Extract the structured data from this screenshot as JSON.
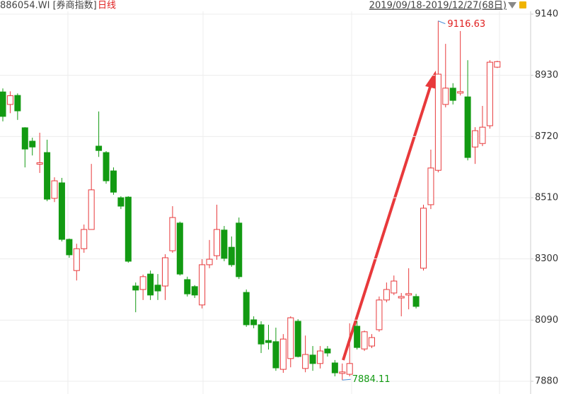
{
  "chart_data": {
    "type": "candlestick",
    "title": "886054.WI [券商指数]",
    "period": "日线",
    "date_range": "2019/09/18-2019/12/27(68日)",
    "open": [
      8873,
      8830,
      8861,
      8750,
      8704,
      8625,
      8665,
      8508,
      8561,
      8367,
      8260,
      8335,
      8401,
      8687,
      8665,
      8602,
      8510,
      8512,
      8207,
      8195,
      8248,
      8210,
      8207,
      8328,
      8423,
      8229,
      8205,
      8142,
      8280,
      8311,
      8399,
      8340,
      8423,
      8185,
      8091,
      8074,
      8020,
      8016,
      7921,
      7958,
      8086,
      7924,
      7970,
      7941,
      7991,
      7943,
      7907,
      7904,
      8069,
      7991,
      8001,
      8057,
      8159,
      8183,
      8166,
      8176,
      8171,
      8268,
      8486,
      8604,
      8830,
      8886,
      8869,
      8856,
      8684,
      8696,
      8757,
      8958
    ],
    "high": [
      8885,
      8875,
      8868,
      8752,
      8716,
      8733,
      8709,
      8580,
      8578,
      8370,
      8352,
      8418,
      8626,
      8806,
      8670,
      8614,
      8515,
      8515,
      8219,
      8246,
      8260,
      8248,
      8316,
      8481,
      8428,
      8239,
      8210,
      8299,
      8365,
      8486,
      8413,
      8377,
      8442,
      8195,
      8103,
      8086,
      8074,
      8064,
      8042,
      8103,
      8093,
      8037,
      8001,
      8001,
      8001,
      7953,
      7941,
      8079,
      8086,
      8054,
      8042,
      8171,
      8219,
      8243,
      8183,
      8268,
      8180,
      8486,
      8675,
      9116.63,
      9038,
      8903,
      9082,
      8982,
      8752,
      8825,
      8982,
      8980
    ],
    "low": [
      8772,
      8800,
      8777,
      8614,
      8655,
      8595,
      8498,
      8495,
      8360,
      8304,
      8226,
      8321,
      8401,
      8650,
      8558,
      8520,
      8471,
      8287,
      8117,
      8159,
      8159,
      8159,
      8159,
      8321,
      8243,
      8171,
      8166,
      8130,
      8268,
      8297,
      8292,
      8273,
      8231,
      8067,
      8062,
      7977,
      7989,
      7916,
      7909,
      7928,
      7962,
      7911,
      7916,
      7924,
      7965,
      7897,
      7884.11,
      7897,
      7989,
      7984,
      7994,
      8050,
      8151,
      8176,
      8103,
      8127,
      8130,
      8260,
      8471,
      8597,
      8820,
      8830,
      8861,
      8638,
      8626,
      8687,
      8747,
      8955
    ],
    "close": [
      8789,
      8860,
      8808,
      8677,
      8684,
      8630,
      8505,
      8568,
      8367,
      8314,
      8335,
      8401,
      8537,
      8672,
      8568,
      8529,
      8481,
      8292,
      8193,
      8239,
      8176,
      8190,
      8304,
      8442,
      8248,
      8180,
      8176,
      8280,
      8299,
      8401,
      8302,
      8280,
      8239,
      8074,
      8074,
      8008,
      8013,
      7926,
      8025,
      8098,
      7965,
      7972,
      7941,
      7984,
      7977,
      7909,
      7912,
      7941,
      7996,
      8050,
      8030,
      8159,
      8195,
      8224,
      8171,
      8181,
      8137,
      8474,
      8612,
      8934,
      8886,
      8844,
      8874,
      8648,
      8740,
      8752,
      8975,
      8977
    ],
    "ylim": [
      7880,
      9140
    ],
    "yticks": [
      7880,
      8090,
      8300,
      8510,
      8720,
      8930,
      9140
    ],
    "grid": true,
    "up_color": "#e8393b",
    "down_color": "#129a12"
  }
}
